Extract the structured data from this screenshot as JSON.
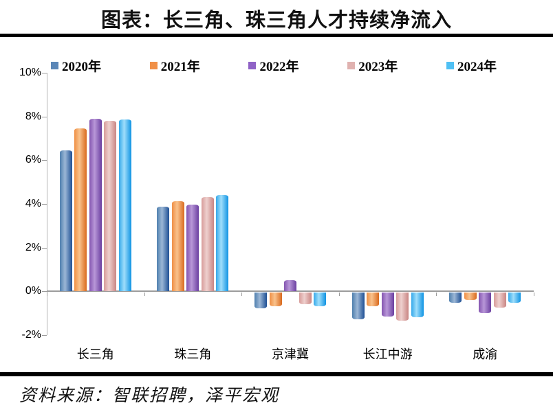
{
  "title": "图表：长三角、珠三角人才持续净流入",
  "source": "资料来源：智联招聘，泽平宏观",
  "chart_data": {
    "type": "bar",
    "title": "图表：长三角、珠三角人才持续净流入",
    "categories": [
      "长三角",
      "珠三角",
      "京津冀",
      "长江中游",
      "成渝"
    ],
    "series": [
      {
        "name": "2020年",
        "color": "#5b87b7",
        "gradient": [
          "#4f7fae",
          "#9cb7d6",
          "#1e4f94"
        ],
        "values": [
          6.45,
          3.85,
          -0.75,
          -1.25,
          -0.5
        ]
      },
      {
        "name": "2021年",
        "color": "#f09048",
        "gradient": [
          "#ef8f45",
          "#f9c28c",
          "#d96a1e"
        ],
        "values": [
          7.45,
          4.1,
          -0.65,
          -0.65,
          -0.35
        ]
      },
      {
        "name": "2022年",
        "color": "#8f62c6",
        "gradient": [
          "#8455b0",
          "#b897d8",
          "#6b3fa0"
        ],
        "values": [
          7.9,
          3.95,
          0.5,
          -1.1,
          -0.95
        ]
      },
      {
        "name": "2023年",
        "color": "#e0b2b0",
        "gradient": [
          "#d79c9a",
          "#eed0ce",
          "#c98583"
        ],
        "values": [
          7.8,
          4.3,
          -0.55,
          -1.3,
          -0.7
        ]
      },
      {
        "name": "2024年",
        "color": "#4fc0f4",
        "gradient": [
          "#36a9ea",
          "#9fdefb",
          "#0f93e3"
        ],
        "values": [
          7.85,
          4.4,
          -0.65,
          -1.15,
          -0.5
        ]
      }
    ],
    "ylim": [
      -2,
      10
    ],
    "ytick_labels": [
      "10%",
      "8%",
      "6%",
      "4%",
      "2%",
      "0%",
      "-2%"
    ],
    "ylabel": "",
    "xlabel": "",
    "grid": false,
    "legend_position": "top"
  }
}
